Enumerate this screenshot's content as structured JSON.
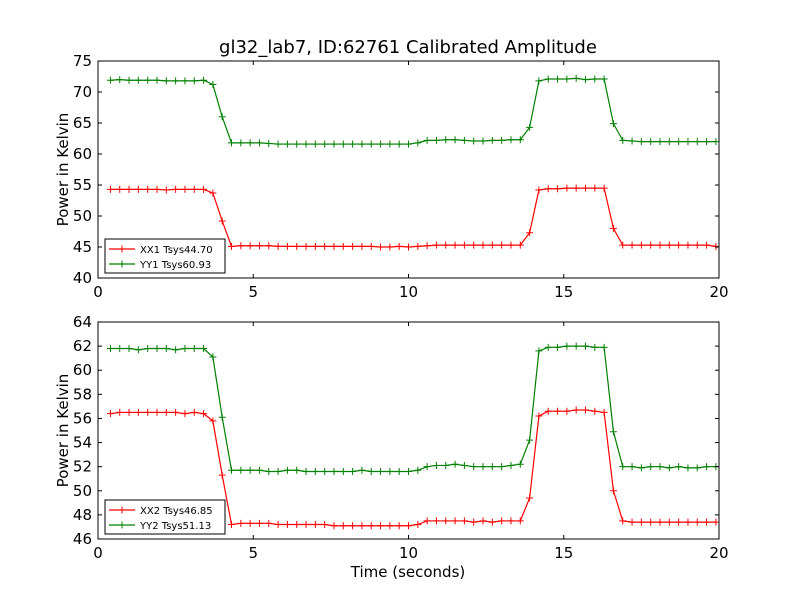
{
  "title": "gl32_lab7, ID:62761 Calibrated Amplitude",
  "xlabel": "Time (seconds)",
  "chart_data": [
    {
      "type": "line",
      "ylabel": "Power in Kelvin",
      "xlim": [
        0,
        20
      ],
      "ylim": [
        40,
        75
      ],
      "xticks": [
        0,
        5,
        10,
        15,
        20
      ],
      "yticks": [
        40,
        45,
        50,
        55,
        60,
        65,
        70,
        75
      ],
      "legend_position": "lower-left",
      "x": [
        0.4,
        0.7,
        1.0,
        1.3,
        1.6,
        1.9,
        2.2,
        2.5,
        2.8,
        3.1,
        3.4,
        3.7,
        4.0,
        4.3,
        4.6,
        4.9,
        5.2,
        5.5,
        5.8,
        6.1,
        6.4,
        6.7,
        7.0,
        7.3,
        7.6,
        7.9,
        8.2,
        8.5,
        8.8,
        9.1,
        9.4,
        9.7,
        10.0,
        10.3,
        10.6,
        10.9,
        11.2,
        11.5,
        11.8,
        12.1,
        12.4,
        12.7,
        13.0,
        13.3,
        13.6,
        13.9,
        14.2,
        14.5,
        14.8,
        15.1,
        15.4,
        15.7,
        16.0,
        16.3,
        16.6,
        16.9,
        17.2,
        17.5,
        17.8,
        18.1,
        18.4,
        18.7,
        19.0,
        19.3,
        19.6,
        19.9
      ],
      "series": [
        {
          "name": "XX1 Tsys44.70",
          "color": "#ff0000",
          "values": [
            54.3,
            54.3,
            54.3,
            54.3,
            54.3,
            54.3,
            54.2,
            54.3,
            54.3,
            54.3,
            54.3,
            53.7,
            49.2,
            45.1,
            45.2,
            45.2,
            45.2,
            45.2,
            45.1,
            45.1,
            45.1,
            45.1,
            45.1,
            45.1,
            45.1,
            45.1,
            45.1,
            45.1,
            45.1,
            45.0,
            45.0,
            45.1,
            45.0,
            45.1,
            45.2,
            45.3,
            45.3,
            45.3,
            45.3,
            45.3,
            45.3,
            45.3,
            45.3,
            45.3,
            45.3,
            47.3,
            54.2,
            54.4,
            54.4,
            54.5,
            54.5,
            54.5,
            54.5,
            54.5,
            48.0,
            45.3,
            45.3,
            45.3,
            45.3,
            45.3,
            45.3,
            45.3,
            45.3,
            45.3,
            45.3,
            45.1
          ]
        },
        {
          "name": "YY1 Tsys60.93",
          "color": "#008000",
          "values": [
            71.9,
            72.0,
            71.9,
            71.9,
            71.9,
            71.9,
            71.8,
            71.8,
            71.8,
            71.8,
            71.9,
            71.2,
            66.0,
            61.8,
            61.8,
            61.8,
            61.8,
            61.7,
            61.6,
            61.6,
            61.6,
            61.6,
            61.6,
            61.6,
            61.6,
            61.6,
            61.6,
            61.6,
            61.6,
            61.6,
            61.6,
            61.6,
            61.6,
            61.8,
            62.2,
            62.2,
            62.3,
            62.3,
            62.2,
            62.1,
            62.1,
            62.2,
            62.2,
            62.3,
            62.3,
            64.3,
            71.8,
            72.1,
            72.1,
            72.1,
            72.2,
            72.0,
            72.1,
            72.1,
            64.9,
            62.2,
            62.1,
            62.0,
            62.0,
            62.0,
            62.0,
            62.0,
            62.0,
            62.0,
            62.0,
            62.0
          ]
        }
      ]
    },
    {
      "type": "line",
      "ylabel": "Power in Kelvin",
      "xlim": [
        0,
        20
      ],
      "ylim": [
        46,
        64
      ],
      "xticks": [
        0,
        5,
        10,
        15,
        20
      ],
      "yticks": [
        46,
        48,
        50,
        52,
        54,
        56,
        58,
        60,
        62,
        64
      ],
      "legend_position": "lower-left",
      "x": [
        0.4,
        0.7,
        1.0,
        1.3,
        1.6,
        1.9,
        2.2,
        2.5,
        2.8,
        3.1,
        3.4,
        3.7,
        4.0,
        4.3,
        4.6,
        4.9,
        5.2,
        5.5,
        5.8,
        6.1,
        6.4,
        6.7,
        7.0,
        7.3,
        7.6,
        7.9,
        8.2,
        8.5,
        8.8,
        9.1,
        9.4,
        9.7,
        10.0,
        10.3,
        10.6,
        10.9,
        11.2,
        11.5,
        11.8,
        12.1,
        12.4,
        12.7,
        13.0,
        13.3,
        13.6,
        13.9,
        14.2,
        14.5,
        14.8,
        15.1,
        15.4,
        15.7,
        16.0,
        16.3,
        16.6,
        16.9,
        17.2,
        17.5,
        17.8,
        18.1,
        18.4,
        18.7,
        19.0,
        19.3,
        19.6,
        19.9
      ],
      "series": [
        {
          "name": "XX2 Tsys46.85",
          "color": "#ff0000",
          "values": [
            56.4,
            56.5,
            56.5,
            56.5,
            56.5,
            56.5,
            56.5,
            56.5,
            56.4,
            56.5,
            56.4,
            55.8,
            51.3,
            47.2,
            47.3,
            47.3,
            47.3,
            47.3,
            47.2,
            47.2,
            47.2,
            47.2,
            47.2,
            47.2,
            47.1,
            47.1,
            47.1,
            47.1,
            47.1,
            47.1,
            47.1,
            47.1,
            47.1,
            47.2,
            47.5,
            47.5,
            47.5,
            47.5,
            47.5,
            47.4,
            47.5,
            47.4,
            47.5,
            47.5,
            47.5,
            49.4,
            56.2,
            56.6,
            56.6,
            56.6,
            56.7,
            56.7,
            56.6,
            56.5,
            50.0,
            47.5,
            47.4,
            47.4,
            47.4,
            47.4,
            47.4,
            47.4,
            47.4,
            47.4,
            47.4,
            47.4
          ]
        },
        {
          "name": "YY2 Tsys51.13",
          "color": "#008000",
          "values": [
            61.8,
            61.8,
            61.8,
            61.7,
            61.8,
            61.8,
            61.8,
            61.7,
            61.8,
            61.8,
            61.8,
            61.1,
            56.1,
            51.7,
            51.7,
            51.7,
            51.7,
            51.6,
            51.6,
            51.7,
            51.7,
            51.6,
            51.6,
            51.6,
            51.6,
            51.6,
            51.6,
            51.7,
            51.6,
            51.6,
            51.6,
            51.6,
            51.6,
            51.7,
            52.0,
            52.1,
            52.1,
            52.2,
            52.1,
            52.0,
            52.0,
            52.0,
            52.0,
            52.1,
            52.2,
            54.2,
            61.6,
            61.9,
            61.9,
            62.0,
            62.0,
            62.0,
            61.9,
            61.9,
            54.9,
            52.0,
            52.0,
            51.9,
            52.0,
            52.0,
            51.9,
            52.0,
            51.9,
            51.9,
            52.0,
            52.0
          ]
        }
      ]
    }
  ]
}
